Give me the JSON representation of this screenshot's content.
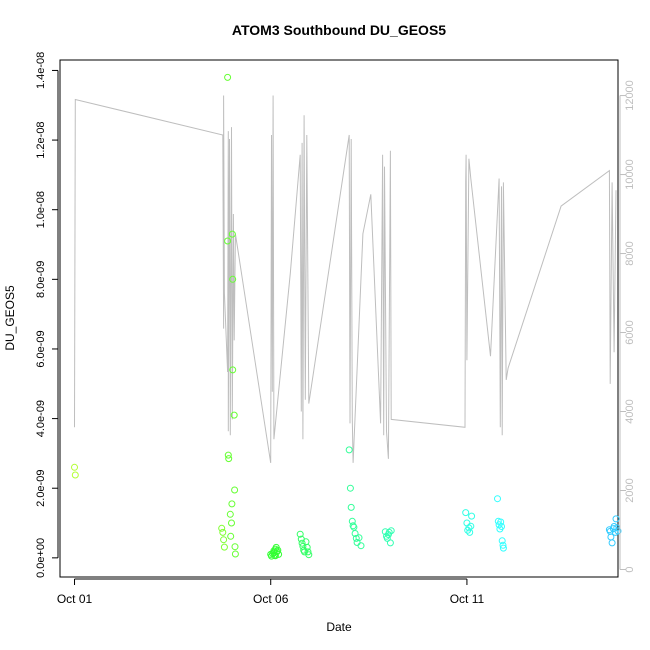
{
  "chart_data": {
    "type": "scatter",
    "title": "ATOM3 Southbound DU_GEOS5",
    "xlabel": "Date",
    "ylabel": "DU_GEOS5",
    "x_ticks": [
      {
        "label": "Oct 01",
        "value": 0
      },
      {
        "label": "Oct 06",
        "value": 5
      },
      {
        "label": "Oct 11",
        "value": 10
      }
    ],
    "xlim": [
      -0.37,
      13.85
    ],
    "y_left": {
      "ticks": [
        "0.0e+00",
        "2.0e-09",
        "4.0e-09",
        "6.0e-09",
        "8.0e-09",
        "1.0e-08",
        "1.2e-08",
        "1.4e-08"
      ],
      "tick_values": [
        0,
        2e-09,
        4e-09,
        6e-09,
        8e-09,
        1e-08,
        1.2e-08,
        1.4e-08
      ],
      "lim": [
        -5.5e-10,
        1.43e-08
      ]
    },
    "y_right": {
      "ticks": [
        "0",
        "2000",
        "4000",
        "6000",
        "8000",
        "10000",
        "12000"
      ],
      "tick_values": [
        0,
        2000,
        4000,
        6000,
        8000,
        10000,
        12000
      ],
      "lim": [
        -190,
        12900
      ],
      "color": "#bebebe"
    },
    "grid": false,
    "legend": "none",
    "point_series": [
      {
        "color": "#b3ff33",
        "x": [
          0.0,
          0.02
        ],
        "y": [
          2.6e-09,
          2.38e-09
        ]
      },
      {
        "color": "#80ff33",
        "x": [
          3.75,
          3.78,
          3.8,
          3.82
        ],
        "y": [
          8.5e-10,
          7.3e-10,
          5.2e-10,
          3.1e-10
        ]
      },
      {
        "color": "#66ff33",
        "x": [
          3.9,
          3.9,
          3.92,
          3.93,
          3.97,
          3.98,
          4.0,
          4.01,
          4.02,
          4.03,
          4.03,
          4.07,
          4.08,
          4.09,
          4.1
        ],
        "y": [
          1.38e-08,
          9.1e-09,
          2.95e-09,
          2.85e-09,
          1.25e-09,
          6.2e-10,
          1e-09,
          1.55e-09,
          9.3e-09,
          8e-09,
          5.4e-09,
          4.1e-09,
          1.95e-09,
          3.2e-10,
          1.1e-10
        ]
      },
      {
        "color": "#33ff33",
        "x": [
          5.0,
          5.02,
          5.05,
          5.08,
          5.1,
          5.12,
          5.14,
          5.16,
          5.18,
          5.2,
          5.08,
          5.12
        ],
        "y": [
          1e-10,
          5e-11,
          1.2e-10,
          1.5e-10,
          8e-11,
          2.5e-10,
          3e-10,
          1.8e-10,
          2.2e-10,
          1e-10,
          2e-10,
          6e-11
        ]
      },
      {
        "color": "#33ff66",
        "x": [
          5.75,
          5.78,
          5.8,
          5.82,
          5.84,
          5.86,
          5.9,
          5.93,
          5.95,
          5.97
        ],
        "y": [
          6.8e-10,
          5.4e-10,
          4.2e-10,
          3.3e-10,
          2.2e-10,
          1.7e-10,
          4.6e-10,
          3e-10,
          1.7e-10,
          9e-11
        ]
      },
      {
        "color": "#33ff99",
        "x": [
          7.0,
          7.03,
          7.05,
          7.08,
          7.1,
          7.12,
          7.15,
          7.18,
          7.2,
          7.25,
          7.3
        ],
        "y": [
          3.1e-09,
          2e-09,
          1.45e-09,
          1.05e-09,
          9.2e-10,
          8.8e-10,
          7e-10,
          5.6e-10,
          4.4e-10,
          5.8e-10,
          3.5e-10
        ]
      },
      {
        "color": "#33ffb3",
        "x": [
          7.92,
          7.95,
          7.97,
          8.0,
          8.02,
          8.05,
          8.07
        ],
        "y": [
          7.5e-10,
          6.2e-10,
          5.6e-10,
          6.7e-10,
          7.3e-10,
          4.3e-10,
          7.8e-10
        ]
      },
      {
        "color": "#33ffe6",
        "x": [
          9.97,
          10.0,
          10.02,
          10.05,
          10.07,
          10.1,
          10.12
        ],
        "y": [
          1.3e-09,
          1e-09,
          7.9e-10,
          8.6e-10,
          7.3e-10,
          9.1e-10,
          1.2e-09
        ]
      },
      {
        "color": "#33ffff",
        "x": [
          10.78,
          10.8,
          10.82,
          10.84,
          10.86,
          10.88,
          10.9,
          10.92,
          10.93
        ],
        "y": [
          1.7e-09,
          1.05e-09,
          9.5e-10,
          8.3e-10,
          1.03e-09,
          9e-10,
          4.9e-10,
          3.6e-10,
          2.8e-10
        ]
      },
      {
        "color": "#33ccff",
        "x": [
          13.63,
          13.65,
          13.67,
          13.7,
          13.73,
          13.75,
          13.78,
          13.8,
          13.82,
          13.85
        ],
        "y": [
          8.1e-10,
          7.6e-10,
          6e-10,
          4.3e-10,
          8.4e-10,
          9e-10,
          7.3e-10,
          1.12e-09,
          8.6e-10,
          7.7e-10
        ]
      }
    ],
    "altitude_line": {
      "color": "#bebebe",
      "axis": "right",
      "points": [
        [
          0.0,
          3600
        ],
        [
          0.02,
          11900
        ],
        [
          3.78,
          11000
        ],
        [
          3.8,
          6100
        ],
        [
          3.8,
          12000
        ],
        [
          3.82,
          7000
        ],
        [
          3.9,
          5000
        ],
        [
          3.92,
          11100
        ],
        [
          3.92,
          3500
        ],
        [
          3.95,
          10900
        ],
        [
          3.97,
          3400
        ],
        [
          4.0,
          11200
        ],
        [
          4.02,
          3800
        ],
        [
          4.05,
          9000
        ],
        [
          4.07,
          5800
        ],
        [
          4.1,
          8500
        ],
        [
          5.0,
          2700
        ],
        [
          5.02,
          11000
        ],
        [
          5.04,
          4500
        ],
        [
          5.06,
          12000
        ],
        [
          5.08,
          3300
        ],
        [
          5.5,
          7500
        ],
        [
          5.75,
          10500
        ],
        [
          5.78,
          4000
        ],
        [
          5.8,
          10800
        ],
        [
          5.82,
          3300
        ],
        [
          5.85,
          11500
        ],
        [
          5.88,
          4300
        ],
        [
          5.92,
          11000
        ],
        [
          5.97,
          4200
        ],
        [
          7.0,
          11000
        ],
        [
          7.02,
          3700
        ],
        [
          7.05,
          10900
        ],
        [
          7.08,
          3800
        ],
        [
          7.1,
          2700
        ],
        [
          7.35,
          8500
        ],
        [
          7.55,
          9500
        ],
        [
          7.8,
          3700
        ],
        [
          7.85,
          10500
        ],
        [
          7.88,
          3400
        ],
        [
          7.9,
          10200
        ],
        [
          7.95,
          3500
        ],
        [
          8.0,
          2800
        ],
        [
          8.05,
          10600
        ],
        [
          8.07,
          3800
        ],
        [
          9.95,
          3600
        ],
        [
          9.97,
          9800
        ],
        [
          9.98,
          10500
        ],
        [
          10.0,
          5300
        ],
        [
          10.05,
          10400
        ],
        [
          10.1,
          9900
        ],
        [
          10.6,
          5400
        ],
        [
          10.82,
          9900
        ],
        [
          10.85,
          3600
        ],
        [
          10.88,
          9700
        ],
        [
          10.9,
          3400
        ],
        [
          10.93,
          9800
        ],
        [
          11.0,
          4800
        ],
        [
          11.05,
          5100
        ],
        [
          12.4,
          9200
        ],
        [
          13.63,
          10100
        ],
        [
          13.65,
          4700
        ],
        [
          13.7,
          9800
        ],
        [
          13.75,
          5500
        ],
        [
          13.8,
          9600
        ]
      ]
    }
  }
}
